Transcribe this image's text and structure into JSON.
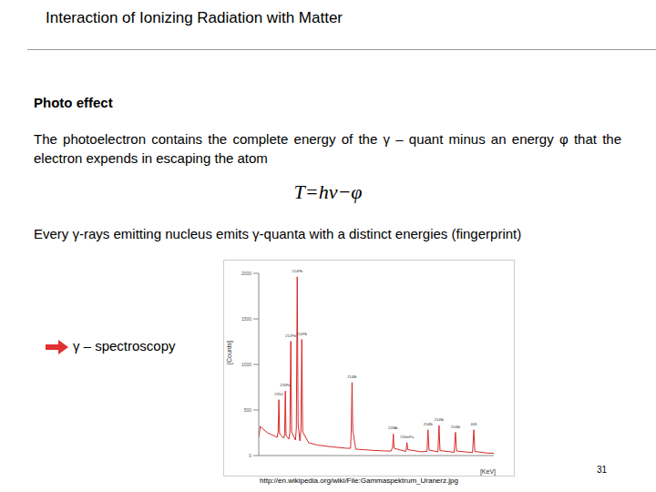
{
  "header": {
    "title": "Interaction of Ionizing Radiation with Matter"
  },
  "section": "Photo effect",
  "paragraph1": "The photoelectron contains the complete energy of the γ – quant minus an energy φ that the electron expends in escaping the atom",
  "formula": "T=hν−φ",
  "paragraph2": "Every γ-rays emitting nucleus  emits γ-quanta with a distinct  energies (fingerprint)",
  "arrow_label": "γ – spectroscopy",
  "chart_data": {
    "type": "line",
    "x_label": "[KeV]",
    "y_label": "[Counts]",
    "x": [
      0,
      10,
      30,
      60,
      100,
      125,
      132,
      137,
      142,
      170,
      176,
      181,
      186,
      205,
      212,
      218,
      224,
      250,
      256,
      262,
      268,
      280,
      287,
      293,
      299,
      340,
      400,
      500,
      600,
      625,
      630,
      635,
      640,
      660,
      800,
      900,
      911,
      916,
      921,
      1000,
      1004,
      1009,
      1014,
      1100,
      1145,
      1152,
      1159,
      1220,
      1227,
      1234,
      1330,
      1339,
      1346,
      1455,
      1464,
      1471,
      1550,
      1600
    ],
    "values": [
      200,
      320,
      290,
      250,
      220,
      200,
      260,
      613,
      240,
      190,
      230,
      708,
      220,
      180,
      250,
      1255,
      260,
      170,
      300,
      1962,
      350,
      160,
      280,
      1274,
      260,
      140,
      115,
      95,
      80,
      80,
      300,
      802,
      280,
      70,
      55,
      48,
      90,
      236,
      80,
      45,
      70,
      142,
      65,
      42,
      45,
      283,
      60,
      40,
      330,
      55,
      36,
      255,
      50,
      32,
      283,
      45,
      28,
      25
    ],
    "color": "#d62a2a",
    "xlim": [
      0,
      1600
    ],
    "ylim": [
      0,
      2000
    ],
    "yticks": [
      0,
      500,
      1000,
      1500,
      2000
    ],
    "tick_labels": "y",
    "grid": false,
    "peaks": {
      "x": [
        137,
        181,
        218,
        262,
        293,
        635,
        916,
        1009,
        1152,
        1227,
        1339,
        1464
      ],
      "values": [
        613,
        708,
        1255,
        1962,
        1274,
        802,
        236,
        142,
        283,
        330,
        255,
        283
      ],
      "labels": [
        "235U",
        "226Ra",
        "212Pb",
        "214Pb",
        "214Pb",
        "214Bi",
        "228Ac",
        "234mPa",
        "214Bi",
        "214Bi",
        "214Bi",
        "40K"
      ]
    }
  },
  "source": "http://en.wikipedia.org/wiki/File:Gammaspektrum_Uranerz.jpg",
  "page": "31"
}
